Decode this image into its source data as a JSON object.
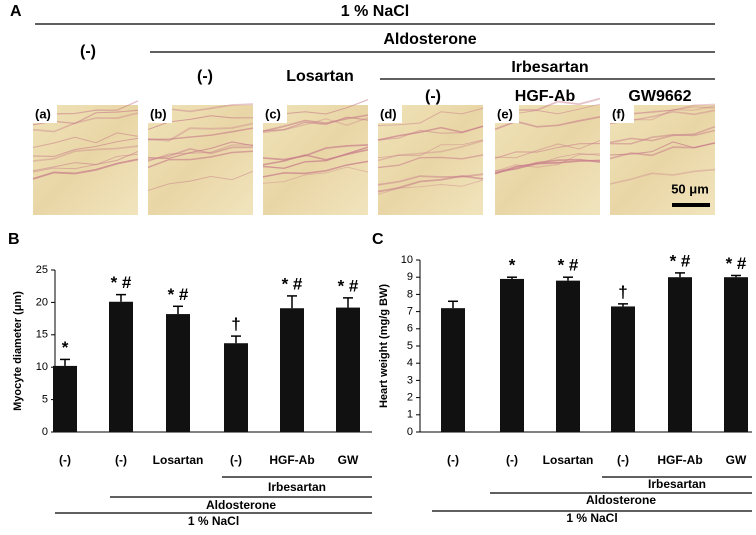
{
  "panel_a": {
    "label": "A",
    "salt": "1 % NaCl",
    "control": "(-)",
    "aldosterone": "Aldosterone",
    "aldo_groups": [
      "(-)",
      "Losartan"
    ],
    "irbesartan": "Irbesartan",
    "irb_groups": [
      "(-)",
      "HGF-Ab",
      "GW9662"
    ],
    "images": [
      "(a)",
      "(b)",
      "(c)",
      "(d)",
      "(e)",
      "(f)"
    ],
    "scale_bar": "50 μm"
  },
  "chart_data": [
    {
      "type": "bar",
      "panel_label": "B",
      "y_label": "Myocyte diameter (μm)",
      "categories": [
        "(-)",
        "(-)",
        "Losartan",
        "(-)",
        "HGF-Ab",
        "GW"
      ],
      "values": [
        10.2,
        20.1,
        18.2,
        13.7,
        19.1,
        19.2
      ],
      "errors": [
        1.0,
        1.1,
        1.2,
        1.1,
        1.9,
        1.5
      ],
      "annotations": [
        "*",
        "* #",
        "* #",
        "†",
        "* #",
        "* #"
      ],
      "group_labels": [
        "Irbesartan",
        "Aldosterone",
        "1 % NaCl"
      ],
      "color": "#111111",
      "ylim": [
        0,
        25
      ],
      "yticks": [
        0,
        5,
        10,
        15,
        20,
        25
      ]
    },
    {
      "type": "bar",
      "panel_label": "C",
      "y_label": "Heart weight (mg/g BW)",
      "categories": [
        "(-)",
        "(-)",
        "Losartan",
        "(-)",
        "HGF-Ab",
        "GW"
      ],
      "values": [
        7.2,
        8.9,
        8.8,
        7.3,
        9.0,
        9.0
      ],
      "errors": [
        0.4,
        0.1,
        0.2,
        0.15,
        0.25,
        0.1
      ],
      "annotations": [
        "",
        "*",
        "* #",
        "†",
        "* #",
        "* #"
      ],
      "group_labels": [
        "Irbesartan",
        "Aldosterone",
        "1 % NaCl"
      ],
      "color": "#111111",
      "ylim": [
        0,
        10
      ],
      "yticks": [
        0,
        1,
        2,
        3,
        4,
        5,
        6,
        7,
        8,
        9,
        10
      ]
    }
  ]
}
